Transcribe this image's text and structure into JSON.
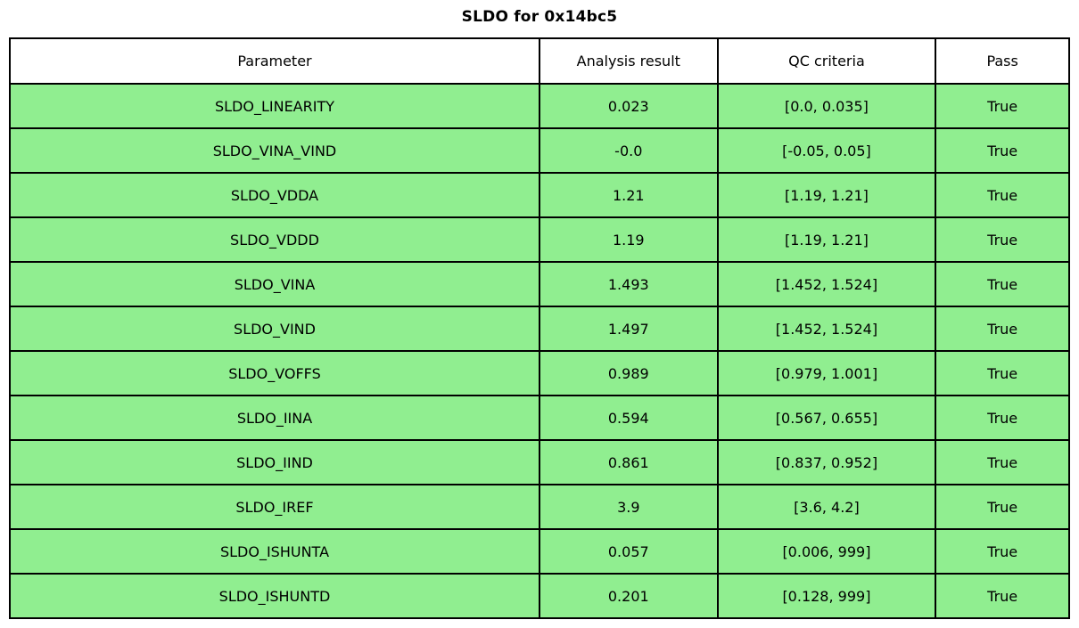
{
  "title": "SLDO for 0x14bc5",
  "colors": {
    "row_bg": "#90EE90",
    "header_bg": "#FFFFFF",
    "border": "#000000",
    "text": "#000000",
    "page_bg": "#FFFFFF"
  },
  "chart_data": {
    "type": "table",
    "title": "SLDO for 0x14bc5",
    "columns": [
      "Parameter",
      "Analysis result",
      "QC criteria",
      "Pass"
    ],
    "rows": [
      [
        "SLDO_LINEARITY",
        "0.023",
        "[0.0, 0.035]",
        "True"
      ],
      [
        "SLDO_VINA_VIND",
        "-0.0",
        "[-0.05, 0.05]",
        "True"
      ],
      [
        "SLDO_VDDA",
        "1.21",
        "[1.19, 1.21]",
        "True"
      ],
      [
        "SLDO_VDDD",
        "1.19",
        "[1.19, 1.21]",
        "True"
      ],
      [
        "SLDO_VINA",
        "1.493",
        "[1.452, 1.524]",
        "True"
      ],
      [
        "SLDO_VIND",
        "1.497",
        "[1.452, 1.524]",
        "True"
      ],
      [
        "SLDO_VOFFS",
        "0.989",
        "[0.979, 1.001]",
        "True"
      ],
      [
        "SLDO_IINA",
        "0.594",
        "[0.567, 0.655]",
        "True"
      ],
      [
        "SLDO_IIND",
        "0.861",
        "[0.837, 0.952]",
        "True"
      ],
      [
        "SLDO_IREF",
        "3.9",
        "[3.6, 4.2]",
        "True"
      ],
      [
        "SLDO_ISHUNTA",
        "0.057",
        "[0.006, 999]",
        "True"
      ],
      [
        "SLDO_ISHUNTD",
        "0.201",
        "[0.128, 999]",
        "True"
      ]
    ],
    "layout": {
      "header_background": "#FFFFFF",
      "row_background": "#90EE90",
      "all_cells_centered": true
    }
  }
}
